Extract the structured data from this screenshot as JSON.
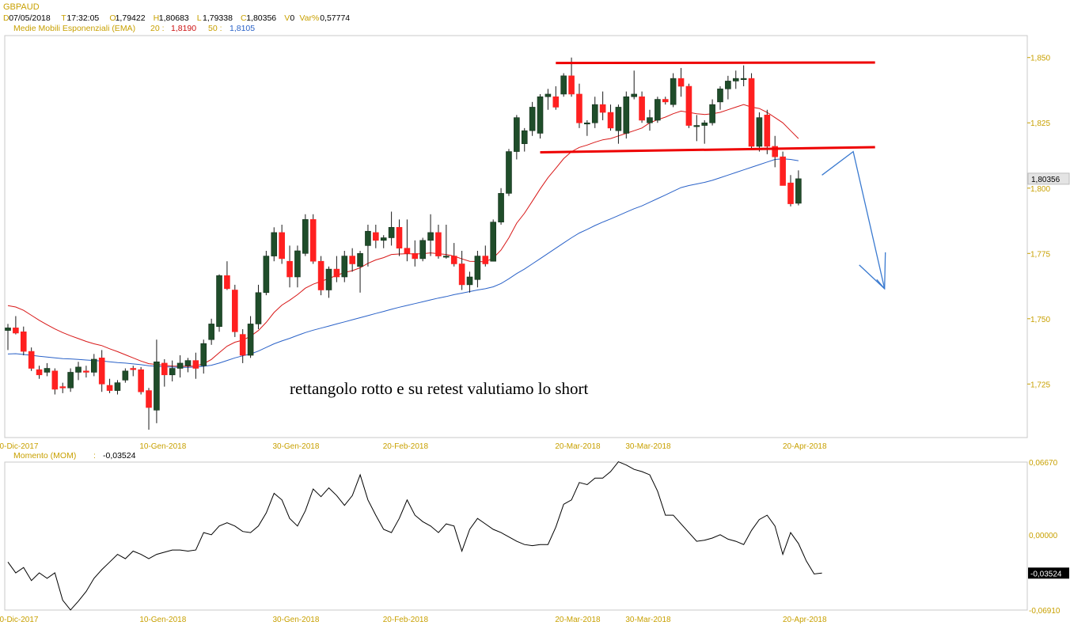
{
  "header": {
    "symbol": "GBPAUD",
    "row1": [
      {
        "key": "D",
        "value": "07/05/2018"
      },
      {
        "key": "T",
        "value": "17:32:05"
      },
      {
        "key": "O",
        "value": "1,79422"
      },
      {
        "key": "H",
        "value": "1,80683"
      },
      {
        "key": "L",
        "value": "1,79338"
      },
      {
        "key": "C",
        "value": "1,80356"
      },
      {
        "key": "V",
        "value": "0"
      },
      {
        "key": "Var%",
        "value": "0,57774"
      }
    ],
    "ema_label": "Medie Mobili Esponenziali (EMA)",
    "ema20_label": "20 :",
    "ema20_value": "1,8190",
    "ema50_label": "50 :",
    "ema50_value": "1,8105",
    "mom_label": "Momento (MOM)",
    "mom_sep": ":",
    "mom_value": "-0,03524"
  },
  "colors": {
    "accent_orange": "#c8a000",
    "bull": "#1f4d2a",
    "bear": "#ff2020",
    "ema20": "#d81818",
    "ema50": "#2a62c8",
    "drawing_red": "#ee0000",
    "drawing_blue": "#3a7ad0",
    "momentum": "#000000"
  },
  "chart_data": [
    {
      "type": "candlestick",
      "symbol": "GBPAUD",
      "last_price_label": "1,80356",
      "y_ticks": [
        "1,725",
        "1,750",
        "1,775",
        "1,800",
        "1,825",
        "1,850"
      ],
      "y_range": [
        1.7045,
        1.8584
      ],
      "x_tick_labels": [
        "0-Dic-2017",
        "10-Gen-2018",
        "30-Gen-2018",
        "20-Feb-2018",
        "20-Mar-2018",
        "30-Mar-2018",
        "20-Apr-2018"
      ],
      "annotation": "rettangolo rotto e su retest valutiamo lo short",
      "candles": [
        {
          "o": 1.7455,
          "h": 1.748,
          "l": 1.738,
          "c": 1.7465
        },
        {
          "o": 1.7465,
          "h": 1.751,
          "l": 1.744,
          "c": 1.7445
        },
        {
          "o": 1.745,
          "h": 1.747,
          "l": 1.736,
          "c": 1.7375
        },
        {
          "o": 1.7375,
          "h": 1.739,
          "l": 1.73,
          "c": 1.731
        },
        {
          "o": 1.7305,
          "h": 1.732,
          "l": 1.727,
          "c": 1.7285
        },
        {
          "o": 1.7295,
          "h": 1.733,
          "l": 1.728,
          "c": 1.731
        },
        {
          "o": 1.73,
          "h": 1.731,
          "l": 1.721,
          "c": 1.723
        },
        {
          "o": 1.724,
          "h": 1.7255,
          "l": 1.7215,
          "c": 1.7235
        },
        {
          "o": 1.7235,
          "h": 1.731,
          "l": 1.722,
          "c": 1.7295
        },
        {
          "o": 1.7295,
          "h": 1.7335,
          "l": 1.7265,
          "c": 1.7315
        },
        {
          "o": 1.73,
          "h": 1.732,
          "l": 1.7275,
          "c": 1.7295
        },
        {
          "o": 1.7295,
          "h": 1.7365,
          "l": 1.728,
          "c": 1.7345
        },
        {
          "o": 1.735,
          "h": 1.738,
          "l": 1.722,
          "c": 1.725
        },
        {
          "o": 1.7245,
          "h": 1.727,
          "l": 1.7215,
          "c": 1.7225
        },
        {
          "o": 1.7225,
          "h": 1.7265,
          "l": 1.721,
          "c": 1.7255
        },
        {
          "o": 1.7265,
          "h": 1.731,
          "l": 1.7255,
          "c": 1.73
        },
        {
          "o": 1.731,
          "h": 1.732,
          "l": 1.728,
          "c": 1.7305
        },
        {
          "o": 1.7305,
          "h": 1.7315,
          "l": 1.721,
          "c": 1.722
        },
        {
          "o": 1.7225,
          "h": 1.7235,
          "l": 1.7075,
          "c": 1.716
        },
        {
          "o": 1.715,
          "h": 1.742,
          "l": 1.71,
          "c": 1.7335
        },
        {
          "o": 1.733,
          "h": 1.7345,
          "l": 1.724,
          "c": 1.7285
        },
        {
          "o": 1.7285,
          "h": 1.734,
          "l": 1.726,
          "c": 1.731
        },
        {
          "o": 1.731,
          "h": 1.736,
          "l": 1.7275,
          "c": 1.733
        },
        {
          "o": 1.732,
          "h": 1.735,
          "l": 1.7295,
          "c": 1.734
        },
        {
          "o": 1.734,
          "h": 1.737,
          "l": 1.727,
          "c": 1.731
        },
        {
          "o": 1.732,
          "h": 1.742,
          "l": 1.729,
          "c": 1.7405
        },
        {
          "o": 1.742,
          "h": 1.75,
          "l": 1.74,
          "c": 1.748
        },
        {
          "o": 1.747,
          "h": 1.767,
          "l": 1.745,
          "c": 1.7665
        },
        {
          "o": 1.7665,
          "h": 1.772,
          "l": 1.761,
          "c": 1.7615
        },
        {
          "o": 1.761,
          "h": 1.763,
          "l": 1.743,
          "c": 1.745
        },
        {
          "o": 1.744,
          "h": 1.746,
          "l": 1.733,
          "c": 1.736
        },
        {
          "o": 1.736,
          "h": 1.751,
          "l": 1.735,
          "c": 1.748
        },
        {
          "o": 1.748,
          "h": 1.763,
          "l": 1.746,
          "c": 1.76
        },
        {
          "o": 1.76,
          "h": 1.776,
          "l": 1.759,
          "c": 1.774
        },
        {
          "o": 1.774,
          "h": 1.785,
          "l": 1.772,
          "c": 1.783
        },
        {
          "o": 1.783,
          "h": 1.786,
          "l": 1.771,
          "c": 1.773
        },
        {
          "o": 1.772,
          "h": 1.778,
          "l": 1.762,
          "c": 1.766
        },
        {
          "o": 1.766,
          "h": 1.778,
          "l": 1.762,
          "c": 1.776
        },
        {
          "o": 1.775,
          "h": 1.79,
          "l": 1.774,
          "c": 1.788
        },
        {
          "o": 1.788,
          "h": 1.79,
          "l": 1.771,
          "c": 1.772
        },
        {
          "o": 1.772,
          "h": 1.774,
          "l": 1.759,
          "c": 1.761
        },
        {
          "o": 1.761,
          "h": 1.77,
          "l": 1.758,
          "c": 1.769
        },
        {
          "o": 1.769,
          "h": 1.774,
          "l": 1.764,
          "c": 1.766
        },
        {
          "o": 1.766,
          "h": 1.776,
          "l": 1.764,
          "c": 1.774
        },
        {
          "o": 1.774,
          "h": 1.777,
          "l": 1.768,
          "c": 1.771
        },
        {
          "o": 1.77,
          "h": 1.776,
          "l": 1.76,
          "c": 1.775
        },
        {
          "o": 1.778,
          "h": 1.786,
          "l": 1.77,
          "c": 1.7835
        },
        {
          "o": 1.783,
          "h": 1.786,
          "l": 1.777,
          "c": 1.78
        },
        {
          "o": 1.78,
          "h": 1.782,
          "l": 1.777,
          "c": 1.781
        },
        {
          "o": 1.781,
          "h": 1.791,
          "l": 1.778,
          "c": 1.785
        },
        {
          "o": 1.785,
          "h": 1.788,
          "l": 1.774,
          "c": 1.777
        },
        {
          "o": 1.777,
          "h": 1.788,
          "l": 1.772,
          "c": 1.775
        },
        {
          "o": 1.775,
          "h": 1.78,
          "l": 1.77,
          "c": 1.773
        },
        {
          "o": 1.773,
          "h": 1.781,
          "l": 1.772,
          "c": 1.78
        },
        {
          "o": 1.78,
          "h": 1.79,
          "l": 1.774,
          "c": 1.783
        },
        {
          "o": 1.783,
          "h": 1.786,
          "l": 1.773,
          "c": 1.774
        },
        {
          "o": 1.774,
          "h": 1.786,
          "l": 1.773,
          "c": 1.774
        },
        {
          "o": 1.774,
          "h": 1.779,
          "l": 1.77,
          "c": 1.771
        },
        {
          "o": 1.771,
          "h": 1.776,
          "l": 1.761,
          "c": 1.763
        },
        {
          "o": 1.763,
          "h": 1.768,
          "l": 1.76,
          "c": 1.766
        },
        {
          "o": 1.765,
          "h": 1.776,
          "l": 1.762,
          "c": 1.774
        },
        {
          "o": 1.774,
          "h": 1.778,
          "l": 1.77,
          "c": 1.771
        },
        {
          "o": 1.772,
          "h": 1.788,
          "l": 1.772,
          "c": 1.787
        },
        {
          "o": 1.787,
          "h": 1.8,
          "l": 1.786,
          "c": 1.798
        },
        {
          "o": 1.798,
          "h": 1.815,
          "l": 1.797,
          "c": 1.814
        },
        {
          "o": 1.814,
          "h": 1.828,
          "l": 1.811,
          "c": 1.827
        },
        {
          "o": 1.817,
          "h": 1.823,
          "l": 1.814,
          "c": 1.822
        },
        {
          "o": 1.822,
          "h": 1.833,
          "l": 1.82,
          "c": 1.831
        },
        {
          "o": 1.821,
          "h": 1.836,
          "l": 1.819,
          "c": 1.835
        },
        {
          "o": 1.835,
          "h": 1.838,
          "l": 1.83,
          "c": 1.836
        },
        {
          "o": 1.835,
          "h": 1.839,
          "l": 1.83,
          "c": 1.831
        },
        {
          "o": 1.836,
          "h": 1.844,
          "l": 1.835,
          "c": 1.843
        },
        {
          "o": 1.843,
          "h": 1.85,
          "l": 1.835,
          "c": 1.836
        },
        {
          "o": 1.836,
          "h": 1.84,
          "l": 1.823,
          "c": 1.825
        },
        {
          "o": 1.825,
          "h": 1.826,
          "l": 1.82,
          "c": 1.825
        },
        {
          "o": 1.825,
          "h": 1.835,
          "l": 1.823,
          "c": 1.832
        },
        {
          "o": 1.832,
          "h": 1.837,
          "l": 1.826,
          "c": 1.829
        },
        {
          "o": 1.829,
          "h": 1.832,
          "l": 1.822,
          "c": 1.823
        },
        {
          "o": 1.822,
          "h": 1.832,
          "l": 1.817,
          "c": 1.831
        },
        {
          "o": 1.821,
          "h": 1.837,
          "l": 1.819,
          "c": 1.835
        },
        {
          "o": 1.835,
          "h": 1.845,
          "l": 1.834,
          "c": 1.836
        },
        {
          "o": 1.835,
          "h": 1.837,
          "l": 1.825,
          "c": 1.826
        },
        {
          "o": 1.825,
          "h": 1.83,
          "l": 1.822,
          "c": 1.827
        },
        {
          "o": 1.826,
          "h": 1.835,
          "l": 1.825,
          "c": 1.834
        },
        {
          "o": 1.834,
          "h": 1.835,
          "l": 1.832,
          "c": 1.833
        },
        {
          "o": 1.832,
          "h": 1.844,
          "l": 1.831,
          "c": 1.842
        },
        {
          "o": 1.842,
          "h": 1.846,
          "l": 1.835,
          "c": 1.839
        },
        {
          "o": 1.839,
          "h": 1.84,
          "l": 1.823,
          "c": 1.824
        },
        {
          "o": 1.824,
          "h": 1.828,
          "l": 1.818,
          "c": 1.824
        },
        {
          "o": 1.824,
          "h": 1.826,
          "l": 1.817,
          "c": 1.825
        },
        {
          "o": 1.825,
          "h": 1.834,
          "l": 1.824,
          "c": 1.832
        },
        {
          "o": 1.833,
          "h": 1.839,
          "l": 1.83,
          "c": 1.838
        },
        {
          "o": 1.838,
          "h": 1.843,
          "l": 1.834,
          "c": 1.841
        },
        {
          "o": 1.841,
          "h": 1.845,
          "l": 1.838,
          "c": 1.842
        },
        {
          "o": 1.842,
          "h": 1.847,
          "l": 1.839,
          "c": 1.842
        },
        {
          "o": 1.842,
          "h": 1.844,
          "l": 1.815,
          "c": 1.816
        },
        {
          "o": 1.816,
          "h": 1.829,
          "l": 1.814,
          "c": 1.827
        },
        {
          "o": 1.828,
          "h": 1.83,
          "l": 1.813,
          "c": 1.816
        },
        {
          "o": 1.816,
          "h": 1.82,
          "l": 1.808,
          "c": 1.812
        },
        {
          "o": 1.812,
          "h": 1.814,
          "l": 1.801,
          "c": 1.801
        },
        {
          "o": 1.802,
          "h": 1.805,
          "l": 1.793,
          "c": 1.794
        },
        {
          "o": 1.7942,
          "h": 1.8068,
          "l": 1.7934,
          "c": 1.8036
        }
      ],
      "series": [
        {
          "name": "Medie Mobili Esponenziali (EMA) 20",
          "values": [
            1.755,
            1.7545,
            1.7532,
            1.7513,
            1.7494,
            1.7477,
            1.7461,
            1.7447,
            1.7435,
            1.7424,
            1.7413,
            1.7404,
            1.7397,
            1.7385,
            1.7374,
            1.7362,
            1.735,
            1.7338,
            1.7328,
            1.7325,
            1.7322,
            1.7319,
            1.7318,
            1.7318,
            1.7319,
            1.7328,
            1.7344,
            1.737,
            1.7395,
            1.741,
            1.7418,
            1.7433,
            1.7455,
            1.7486,
            1.7524,
            1.7552,
            1.7571,
            1.7592,
            1.7617,
            1.7632,
            1.7643,
            1.7654,
            1.7666,
            1.7677,
            1.7684,
            1.7695,
            1.7712,
            1.7725,
            1.7734,
            1.7746,
            1.7748,
            1.7749,
            1.7748,
            1.7749,
            1.7752,
            1.7749,
            1.7746,
            1.774,
            1.7729,
            1.772,
            1.7719,
            1.7718,
            1.7732,
            1.7763,
            1.781,
            1.7866,
            1.7904,
            1.795,
            1.7997,
            1.804,
            1.8076,
            1.8113,
            1.814,
            1.8156,
            1.8165,
            1.8176,
            1.8185,
            1.819,
            1.82,
            1.821,
            1.822,
            1.823,
            1.825,
            1.8262,
            1.8272,
            1.8285,
            1.8295,
            1.829,
            1.8285,
            1.8282,
            1.8285,
            1.829,
            1.83,
            1.831,
            1.832,
            1.831,
            1.8305,
            1.829,
            1.827,
            1.825,
            1.822,
            1.819
          ]
        },
        {
          "name": "Medie Mobili Esponenziali (EMA) 50",
          "values": [
            1.7365,
            1.7366,
            1.7363,
            1.736,
            1.7356,
            1.7353,
            1.735,
            1.7347,
            1.7346,
            1.7344,
            1.7342,
            1.734,
            1.7338,
            1.7335,
            1.7332,
            1.733,
            1.7327,
            1.7324,
            1.732,
            1.7318,
            1.7316,
            1.7315,
            1.7314,
            1.7314,
            1.7315,
            1.7318,
            1.7322,
            1.733,
            1.734,
            1.735,
            1.7358,
            1.7365,
            1.7376,
            1.739,
            1.7404,
            1.7415,
            1.7425,
            1.7436,
            1.7447,
            1.7456,
            1.7464,
            1.7472,
            1.748,
            1.7488,
            1.7496,
            1.7504,
            1.7512,
            1.752,
            1.7528,
            1.7536,
            1.7544,
            1.7551,
            1.7558,
            1.7565,
            1.7572,
            1.7579,
            1.7585,
            1.7592,
            1.7598,
            1.7604,
            1.761,
            1.7615,
            1.7622,
            1.7635,
            1.7653,
            1.7673,
            1.769,
            1.771,
            1.773,
            1.775,
            1.777,
            1.779,
            1.781,
            1.7828,
            1.7842,
            1.7857,
            1.787,
            1.7882,
            1.7895,
            1.7908,
            1.7921,
            1.7932,
            1.7946,
            1.796,
            1.7974,
            1.7988,
            1.8002,
            1.801,
            1.8016,
            1.8022,
            1.803,
            1.804,
            1.805,
            1.806,
            1.807,
            1.808,
            1.809,
            1.81,
            1.811,
            1.8112,
            1.811,
            1.8105
          ]
        }
      ],
      "trendlines": [
        {
          "kind": "rectangle-top",
          "from_bar": 70,
          "to_bar": 112,
          "y1": 1.8479,
          "y2": 1.8481
        },
        {
          "kind": "rectangle-bottom",
          "from_bar": 68,
          "to_bar": 112,
          "y1": 1.8137,
          "y2": 1.8157
        },
        {
          "kind": "projection",
          "points": [
            [
              104,
              1.805
            ],
            [
              108,
              1.814
            ],
            [
              112,
              1.7615
            ],
            [
              111,
              1.765
            ],
            [
              112,
              1.7615
            ]
          ]
        }
      ]
    },
    {
      "type": "line",
      "title": "Momento (MOM)",
      "last_value_label": "-0,03524",
      "y_ticks": [
        "0,06670",
        "0,00000",
        "-0,06910"
      ],
      "y_range": [
        -0.0691,
        0.0667
      ],
      "x_tick_labels": [
        "0-Dic-2017",
        "10-Gen-2018",
        "30-Gen-2018",
        "20-Feb-2018",
        "20-Mar-2018",
        "30-Mar-2018",
        "20-Apr-2018"
      ],
      "values": [
        -0.025,
        -0.035,
        -0.03,
        -0.042,
        -0.035,
        -0.04,
        -0.035,
        -0.06,
        -0.069,
        -0.061,
        -0.052,
        -0.04,
        -0.032,
        -0.025,
        -0.018,
        -0.022,
        -0.015,
        -0.018,
        -0.022,
        -0.018,
        -0.016,
        -0.014,
        -0.014,
        -0.015,
        -0.014,
        0.002,
        0.0,
        0.008,
        0.011,
        0.008,
        0.003,
        0.002,
        0.008,
        0.02,
        0.038,
        0.032,
        0.015,
        0.008,
        0.022,
        0.042,
        0.035,
        0.043,
        0.036,
        0.027,
        0.036,
        0.055,
        0.032,
        0.018,
        0.005,
        0.002,
        0.015,
        0.032,
        0.018,
        0.012,
        0.008,
        0.002,
        0.01,
        0.008,
        -0.015,
        0.005,
        0.015,
        0.01,
        0.005,
        0.002,
        -0.002,
        -0.006,
        -0.009,
        -0.01,
        -0.009,
        -0.009,
        0.007,
        0.028,
        0.032,
        0.048,
        0.046,
        0.052,
        0.052,
        0.058,
        0.067,
        0.064,
        0.06,
        0.058,
        0.055,
        0.04,
        0.018,
        0.018,
        0.01,
        0.002,
        -0.006,
        -0.005,
        -0.003,
        0.0,
        -0.004,
        -0.006,
        -0.009,
        0.004,
        0.014,
        0.018,
        0.008,
        -0.018,
        0.002,
        -0.008,
        -0.024,
        -0.036,
        -0.0352
      ]
    }
  ]
}
